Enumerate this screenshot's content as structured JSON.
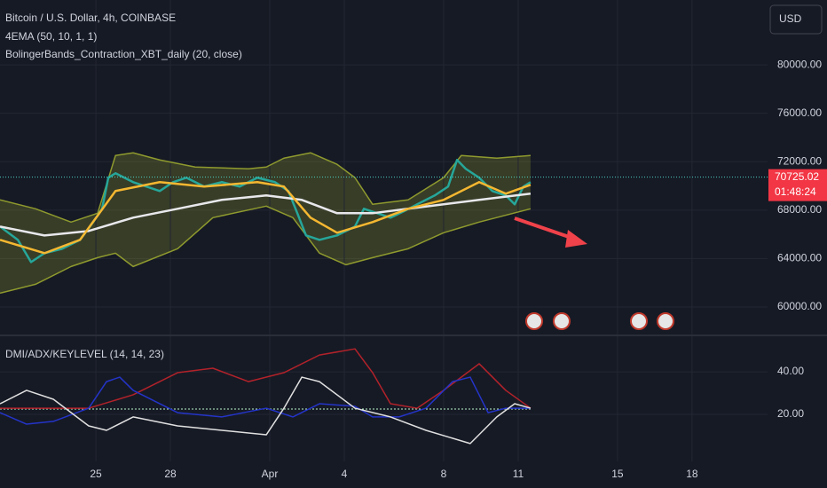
{
  "chart_data": [
    {
      "type": "line",
      "title": "Bitcoin / U.S. Dollar, 4h, COINBASE",
      "indicators": [
        "4EMA (50, 10, 1, 1)",
        "BolingerBands_Contraction_XBT_daily (20, close)"
      ],
      "currency": "USD",
      "xlim": [
        -3.86,
        27.04
      ],
      "ylim": [
        57870,
        85360
      ],
      "yticks": [
        {
          "value": 60000,
          "label": "60000.00"
        },
        {
          "value": 64000,
          "label": "64000.00"
        },
        {
          "value": 68000,
          "label": "68000.00"
        },
        {
          "value": 72000,
          "label": "72000.00"
        },
        {
          "value": 76000,
          "label": "76000.00"
        },
        {
          "value": 80000,
          "label": "80000.00"
        }
      ],
      "last_price": 70725.02,
      "countdown": "01:48:24",
      "series": [
        {
          "color": "#8f9a2e",
          "x": [
            -3.86,
            -2.43,
            -1,
            0.07,
            0.79,
            1.5,
            2.57,
            4,
            6.14,
            6.86,
            7.57,
            8.64,
            9.71,
            10.43,
            11.14,
            12.57,
            14,
            14.71,
            16.14,
            17.5
          ],
          "values": [
            68845,
            68111,
            67010,
            67744,
            72514,
            72734,
            72147,
            71560,
            71413,
            71560,
            72294,
            72734,
            71780,
            70679,
            68478,
            68845,
            70679,
            72514,
            72294,
            72514
          ]
        },
        {
          "color": "#8f9a2e",
          "x": [
            -3.86,
            -2.43,
            -1,
            0.07,
            0.79,
            1.5,
            3.29,
            4.71,
            6.86,
            7.93,
            9,
            10.07,
            11.14,
            12.57,
            14,
            15.43,
            17.5
          ],
          "values": [
            61139,
            61873,
            63340,
            64074,
            64441,
            63340,
            64808,
            67377,
            68331,
            67377,
            64441,
            63487,
            64074,
            64808,
            66129,
            67010,
            68111
          ]
        },
        {
          "color": "#26a69a",
          "x": [
            -3.86,
            -3.14,
            -2.61,
            -2.07,
            -1.36,
            -0.64,
            -0.11,
            0.25,
            0.5,
            0.79,
            1.5,
            2.04,
            2.57,
            3.11,
            3.64,
            4.36,
            5.07,
            5.79,
            6.5,
            7.21,
            7.75,
            8.11,
            8.46,
            9,
            9.71,
            10.43,
            10.79,
            11.32,
            11.86,
            12.39,
            12.93,
            13.64,
            14.18,
            14.54,
            14.89,
            15.43,
            15.96,
            16.5,
            16.86,
            17.21,
            17.5
          ],
          "values": [
            66643,
            65542,
            63707,
            64441,
            64808,
            65542,
            67010,
            68111,
            70679,
            71046,
            70313,
            69946,
            69579,
            70313,
            70679,
            69946,
            70313,
            69946,
            70679,
            70313,
            69579,
            67744,
            65909,
            65542,
            65909,
            66643,
            68111,
            67744,
            67377,
            67891,
            68478,
            69212,
            69946,
            72147,
            71413,
            70679,
            69579,
            69212,
            68478,
            69946,
            70313
          ]
        },
        {
          "color": "#e8e8ec",
          "x": [
            -3.86,
            -2.07,
            -0.29,
            1.5,
            3.29,
            5.07,
            6.86,
            8.29,
            9.71,
            11.14,
            12.57,
            14,
            15.43,
            17.5
          ],
          "values": [
            66643,
            65909,
            66276,
            67377,
            68111,
            68845,
            69212,
            68845,
            67744,
            67744,
            68111,
            68478,
            68845,
            69358
          ]
        },
        {
          "color": "#f5b731",
          "x": [
            -3.86,
            -2.07,
            -0.64,
            0.79,
            2.57,
            4.36,
            6.5,
            7.57,
            8.64,
            9.71,
            11.14,
            12.57,
            14,
            15.43,
            16.5,
            17.5
          ],
          "values": [
            65542,
            64441,
            65542,
            69579,
            70313,
            69946,
            70313,
            69946,
            67377,
            66129,
            67010,
            68111,
            68845,
            70313,
            69358,
            70092
          ]
        }
      ]
    },
    {
      "type": "line",
      "title": "DMI/ADX/KEYLEVEL (14, 14, 23)",
      "xlim": [
        -3.86,
        27.04
      ],
      "xticks": [
        {
          "value": 0,
          "label": "25"
        },
        {
          "value": 3,
          "label": "28"
        },
        {
          "value": 7,
          "label": "Apr"
        },
        {
          "value": 10,
          "label": "4"
        },
        {
          "value": 14,
          "label": "8"
        },
        {
          "value": 17,
          "label": "11"
        },
        {
          "value": 21,
          "label": "15"
        },
        {
          "value": 24,
          "label": "18"
        }
      ],
      "ylim": [
        -2.1,
        56.3
      ],
      "yticks": [
        {
          "value": 20,
          "label": "20.00"
        },
        {
          "value": 40,
          "label": "40.00"
        }
      ],
      "series": [
        {
          "color": "#b2222a",
          "x": [
            -3.86,
            -0.29,
            1.5,
            3.29,
            4.71,
            6.14,
            7.57,
            9,
            10.43,
            11.14,
            11.86,
            12.93,
            14,
            15.43,
            16.5,
            17.5
          ],
          "values": [
            22.9,
            22.9,
            29.2,
            39.6,
            41.7,
            35.4,
            39.6,
            47.9,
            50.8,
            39.6,
            25,
            22.9,
            31.3,
            43.8,
            31.3,
            22.9
          ]
        },
        {
          "color": "#2434c8",
          "x": [
            -3.86,
            -2.79,
            -1.71,
            -0.29,
            0.43,
            0.96,
            1.5,
            3.29,
            5.07,
            6.86,
            7.93,
            9,
            10.43,
            11.14,
            12.21,
            13.29,
            14.36,
            15.07,
            15.79,
            16.5,
            17.5
          ],
          "values": [
            20.8,
            15.4,
            16.7,
            22.9,
            35.4,
            37.5,
            31.3,
            20.8,
            18.8,
            22.9,
            18.8,
            25,
            23.8,
            18.8,
            18.8,
            22.9,
            35.4,
            37.5,
            20.8,
            22.9,
            22.9
          ]
        },
        {
          "color": "#e0e0e0",
          "x": [
            -3.86,
            -2.79,
            -1.71,
            -0.29,
            0.43,
            1.5,
            3.29,
            5.07,
            6.86,
            7.57,
            8.29,
            9,
            10.43,
            11.86,
            13.29,
            15.07,
            16.14,
            16.86,
            17.5
          ],
          "values": [
            25,
            31.3,
            27.1,
            14.6,
            12.5,
            18.8,
            14.6,
            12.5,
            10.4,
            22.9,
            37.5,
            35.4,
            22.9,
            18.8,
            12.5,
            6.3,
            18.8,
            25,
            22.9
          ]
        }
      ]
    }
  ]
}
